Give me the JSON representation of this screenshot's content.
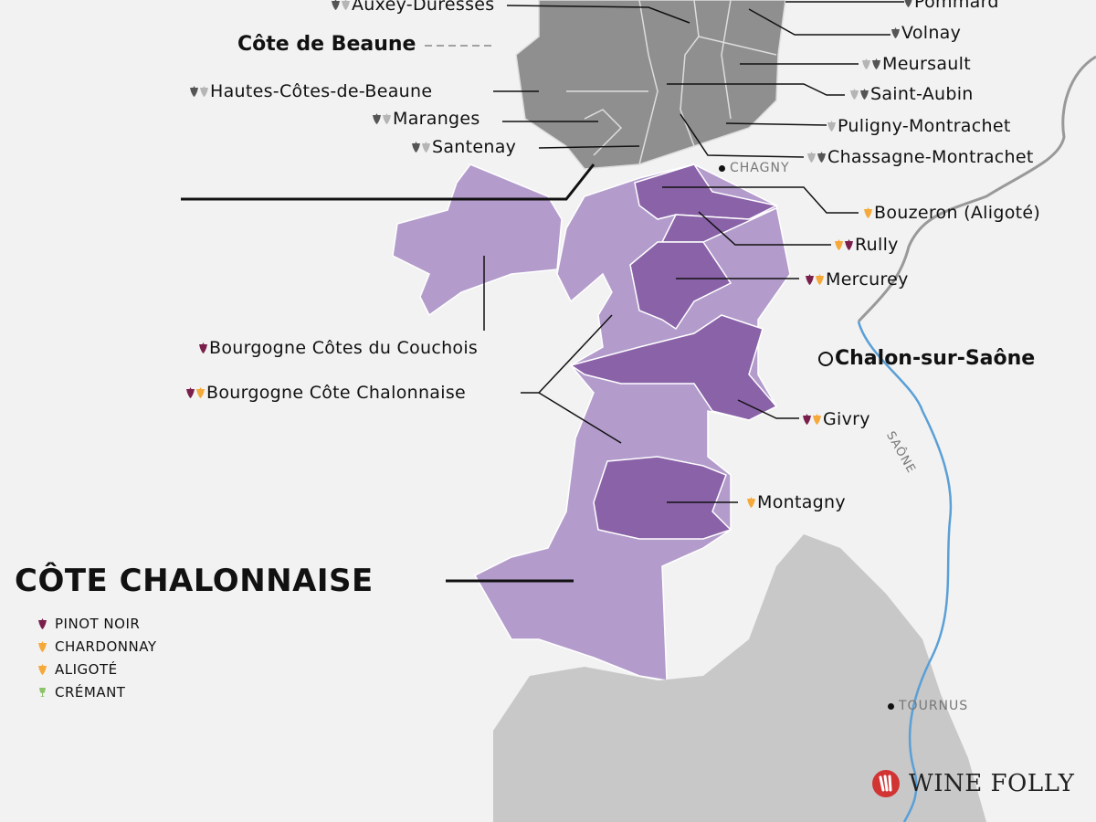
{
  "region_titles": {
    "cote_de_beaune": "Côte de Beaune",
    "cote_chalonnaise": "CÔTE CHALONNAISE"
  },
  "colors": {
    "pinot_noir": "#7a1f4b",
    "chardonnay": "#f5a93a",
    "aligote": "#f5a93a",
    "cremant": "#8bc36a",
    "beaune_light": "#b5b5b5",
    "beaune_dark": "#555555",
    "region_light": "#b39ccc",
    "region_dark": "#8a62a8",
    "river": "#5a9fd6"
  },
  "beaune_appellations": [
    {
      "name": "Auxey-Duresses",
      "icons": [
        "dark",
        "light"
      ]
    },
    {
      "name": "Pommard",
      "icons": [
        "dark"
      ]
    },
    {
      "name": "Volnay",
      "icons": [
        "dark"
      ]
    },
    {
      "name": "Meursault",
      "icons": [
        "light",
        "dark"
      ]
    },
    {
      "name": "Hautes-Côtes-de-Beaune",
      "icons": [
        "dark",
        "light"
      ]
    },
    {
      "name": "Saint-Aubin",
      "icons": [
        "light",
        "dark"
      ]
    },
    {
      "name": "Maranges",
      "icons": [
        "dark",
        "light"
      ]
    },
    {
      "name": "Puligny-Montrachet",
      "icons": [
        "light"
      ]
    },
    {
      "name": "Santenay",
      "icons": [
        "dark",
        "light"
      ]
    },
    {
      "name": "Chassagne-Montrachet",
      "icons": [
        "light",
        "dark"
      ]
    }
  ],
  "chalonnaise_appellations": [
    {
      "name": "Bouzeron (Aligoté)",
      "icons": [
        "aligote"
      ]
    },
    {
      "name": "Rully",
      "icons": [
        "chardonnay",
        "pinot_noir"
      ]
    },
    {
      "name": "Mercurey",
      "icons": [
        "pinot_noir",
        "chardonnay"
      ]
    },
    {
      "name": "Bourgogne Côtes du Couchois",
      "icons": [
        "pinot_noir"
      ]
    },
    {
      "name": "Bourgogne Côte Chalonnaise",
      "icons": [
        "pinot_noir",
        "chardonnay"
      ]
    },
    {
      "name": "Givry",
      "icons": [
        "pinot_noir",
        "chardonnay"
      ]
    },
    {
      "name": "Montagny",
      "icons": [
        "chardonnay"
      ]
    }
  ],
  "towns": {
    "chagny": "CHAGNY",
    "chalon": "Chalon-sur-Saône",
    "tournus": "TOURNUS"
  },
  "river": "SAÔNE",
  "legend": [
    {
      "label": "PINOT NOIR",
      "icon": "pinot_noir"
    },
    {
      "label": "CHARDONNAY",
      "icon": "chardonnay"
    },
    {
      "label": "ALIGOTÉ",
      "icon": "aligote"
    },
    {
      "label": "CRÉMANT",
      "icon": "cremant"
    }
  ],
  "brand": "WINE FOLLY"
}
